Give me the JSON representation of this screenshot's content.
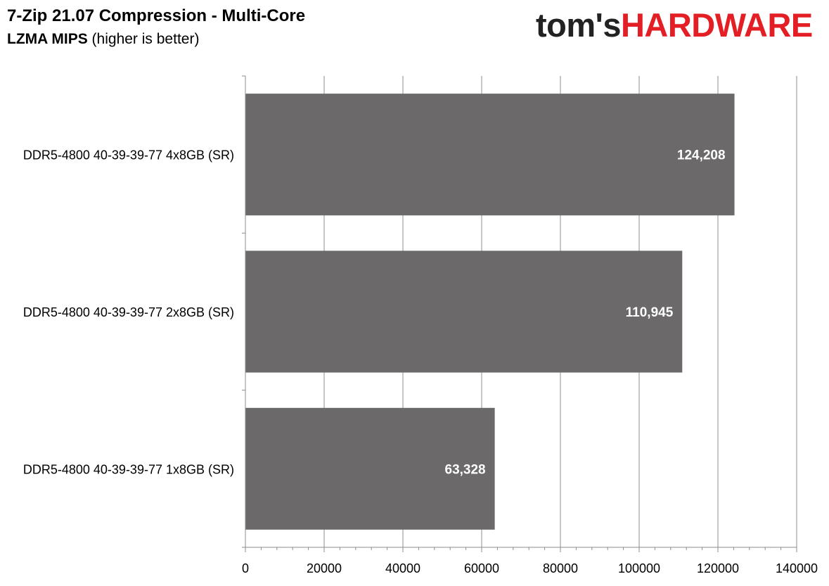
{
  "header": {
    "title": "7-Zip 21.07 Compression - Multi-Core",
    "subtitle_bold": "LZMA MIPS",
    "subtitle_rest": " (higher is better)"
  },
  "logo": {
    "part1": "tom's",
    "part2": "HARDWARE",
    "colors": {
      "part1": "#222222",
      "part2": "#e31e24"
    }
  },
  "chart_data": {
    "type": "bar",
    "orientation": "horizontal",
    "title": "7-Zip 21.07 Compression - Multi-Core",
    "subtitle": "LZMA MIPS (higher is better)",
    "categories": [
      "DDR5-4800 40-39-39-77 4x8GB (SR)",
      "DDR5-4800 40-39-39-77 2x8GB (SR)",
      "DDR5-4800 40-39-39-77 1x8GB (SR)"
    ],
    "values": [
      124208,
      110945,
      63328
    ],
    "data_labels": [
      "124,208",
      "110,945",
      "63,328"
    ],
    "xlim": [
      0,
      140000
    ],
    "x_ticks": [
      0,
      20000,
      40000,
      60000,
      80000,
      100000,
      120000,
      140000
    ],
    "x_tick_labels": [
      "0",
      "20000",
      "40000",
      "60000",
      "80000",
      "100000",
      "120000",
      "140000"
    ],
    "grid": true,
    "bar_color": "#6b6969",
    "data_label_color": "#ffffff"
  }
}
